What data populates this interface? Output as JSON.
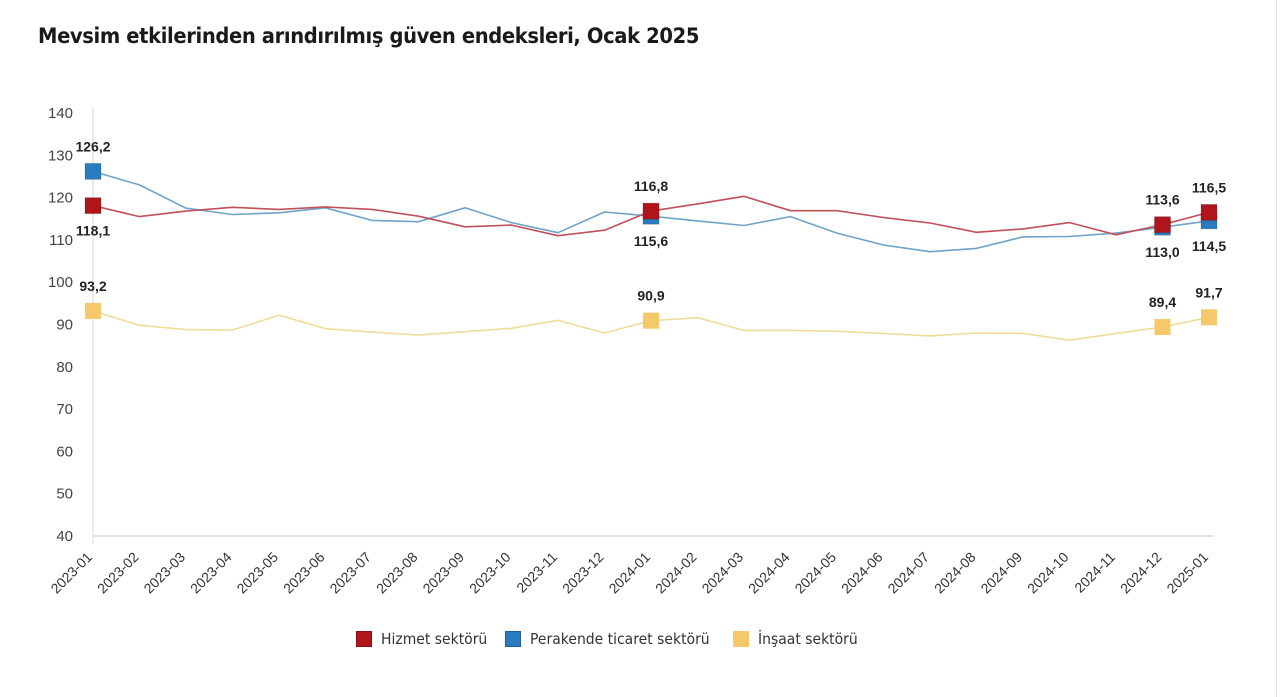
{
  "chart_data": {
    "type": "line",
    "title": "Mevsim etkilerinden arındırılmış güven endeksleri, Ocak 2025",
    "xlabel": "",
    "ylabel": "",
    "ylim": [
      40,
      140
    ],
    "yticks": [
      140,
      130,
      120,
      110,
      100,
      90,
      80,
      70,
      60,
      50,
      40
    ],
    "grid": false,
    "legend_position": "bottom",
    "categories": [
      "2023-01",
      "2023-02",
      "2023-03",
      "2023-04",
      "2023-05",
      "2023-06",
      "2023-07",
      "2023-08",
      "2023-09",
      "2023-10",
      "2023-11",
      "2023-12",
      "2024-01",
      "2024-02",
      "2024-03",
      "2024-04",
      "2024-05",
      "2024-06",
      "2024-07",
      "2024-08",
      "2024-09",
      "2024-10",
      "2024-11",
      "2024-12",
      "2025-01"
    ],
    "series": [
      {
        "name": "Hizmet sektörü",
        "color": "#b0151c",
        "line_color": "#c0505a",
        "values": [
          118.1,
          115.5,
          116.8,
          117.7,
          117.2,
          117.8,
          117.2,
          115.6,
          113.1,
          113.5,
          111.0,
          112.3,
          116.8,
          118.5,
          120.3,
          116.9,
          116.9,
          115.3,
          114.0,
          111.8,
          112.6,
          114.1,
          111.2,
          113.6,
          116.5
        ],
        "markers": [
          {
            "index": 0,
            "label": "118,1",
            "label_pos": "below"
          },
          {
            "index": 12,
            "label": "116,8",
            "label_pos": "above"
          },
          {
            "index": 23,
            "label": "113,6",
            "label_pos": "above"
          },
          {
            "index": 24,
            "label": "116,5",
            "label_pos": "above"
          }
        ]
      },
      {
        "name": "Perakende ticaret sektörü",
        "color": "#2a7bbf",
        "line_color": "#6fa3c8",
        "values": [
          126.2,
          123.0,
          117.5,
          116.0,
          116.4,
          117.6,
          114.6,
          114.3,
          117.6,
          114.1,
          111.7,
          116.6,
          115.6,
          114.5,
          113.4,
          115.5,
          111.6,
          108.8,
          107.2,
          108.0,
          110.7,
          110.8,
          111.6,
          113.0,
          114.5
        ],
        "markers": [
          {
            "index": 0,
            "label": "126,2",
            "label_pos": "above"
          },
          {
            "index": 12,
            "label": "115,6",
            "label_pos": "below"
          },
          {
            "index": 23,
            "label": "113,0",
            "label_pos": "below"
          },
          {
            "index": 24,
            "label": "114,5",
            "label_pos": "below"
          }
        ]
      },
      {
        "name": "İnşaat sektörü",
        "color": "#f5c96a",
        "line_color": "#eedc98",
        "values": [
          93.2,
          89.8,
          88.8,
          88.7,
          92.2,
          89.0,
          88.2,
          87.5,
          88.3,
          89.1,
          91.0,
          88.0,
          90.9,
          91.6,
          88.6,
          88.6,
          88.4,
          87.9,
          87.3,
          88.0,
          87.9,
          86.3,
          87.9,
          89.4,
          91.7
        ],
        "markers": [
          {
            "index": 0,
            "label": "93,2",
            "label_pos": "above"
          },
          {
            "index": 12,
            "label": "90,9",
            "label_pos": "above"
          },
          {
            "index": 23,
            "label": "89,4",
            "label_pos": "above"
          },
          {
            "index": 24,
            "label": "91,7",
            "label_pos": "above"
          }
        ]
      }
    ]
  }
}
